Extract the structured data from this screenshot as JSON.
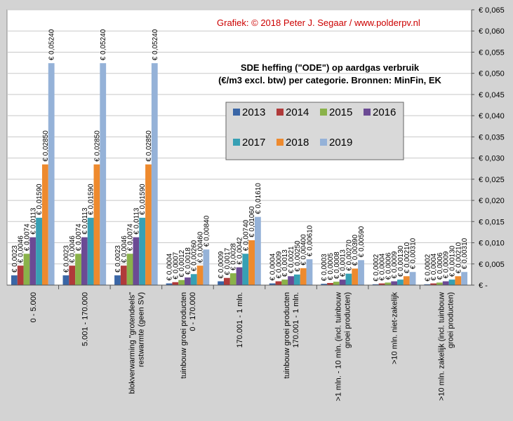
{
  "credit": "Grafiek:  © 2018  Peter J. Segaar / www.polderpv.nl",
  "chart_data": {
    "type": "bar",
    "title": [
      "SDE heffing (\"ODE\")  op aardgas verbruik",
      "(€/m3 excl. btw) per categorie. Bronnen: MinFin, EK"
    ],
    "xlabel": "",
    "ylabel": "",
    "ylim": [
      0,
      0.065
    ],
    "y_ticks": [
      0,
      0.005,
      0.01,
      0.015,
      0.02,
      0.025,
      0.03,
      0.035,
      0.04,
      0.045,
      0.05,
      0.055,
      0.06,
      0.065
    ],
    "y_tick_labels": [
      "€ -",
      "€ 0,005",
      "€ 0,010",
      "€ 0,015",
      "€ 0,020",
      "€ 0,025",
      "€ 0,030",
      "€ 0,035",
      "€ 0,040",
      "€ 0,045",
      "€ 0,050",
      "€ 0,055",
      "€ 0,060",
      "€ 0,065"
    ],
    "y_axis_position": "right",
    "grid": true,
    "legend_position": "center-right",
    "categories": [
      [
        "0 - 5.000"
      ],
      [
        "5.001 - 170.000"
      ],
      [
        "blokverwarming \"grotendeels\"",
        "restwarmte (geen SV)"
      ],
      [
        "tuinbouw groei producten",
        "0 - 170.000"
      ],
      [
        "170.001 - 1 mln."
      ],
      [
        "tuinbouw groei producten",
        "170.001 - 1 mln."
      ],
      [
        ">1 mln. - 10 mln. (incl. tuinbouw",
        "groei producten)"
      ],
      [
        ">10 mln. niet-zakelijk"
      ],
      [
        ">10 mln. zakelijk (incl. tuinbouw",
        "groei producten)"
      ]
    ],
    "series": [
      {
        "name": "2013",
        "color": "#3a66a6",
        "values": [
          0.0023,
          0.0023,
          0.0023,
          0.0004,
          0.0009,
          0.0004,
          0.0003,
          0.0002,
          0.0002
        ],
        "labels": [
          "€ 0,0023",
          "€ 0,0023",
          "€ 0,0023",
          "€ 0,0004",
          "€ 0,0009",
          "€ 0,0004",
          "€ 0,0003",
          "€ 0,0002",
          "€ 0,0002"
        ]
      },
      {
        "name": "2014",
        "color": "#b03a3a",
        "values": [
          0.0046,
          0.0046,
          0.0046,
          0.0007,
          0.0017,
          0.0009,
          0.0005,
          0.0004,
          0.0004
        ],
        "labels": [
          "€ 0,0046",
          "€ 0,0046",
          "€ 0,0046",
          "€ 0,0007",
          "€ 0,0017",
          "€ 0,0009",
          "€ 0,0005",
          "€ 0,0004",
          "€ 0,0004"
        ]
      },
      {
        "name": "2015",
        "color": "#8ab24a",
        "values": [
          0.0074,
          0.0074,
          0.0074,
          0.0012,
          0.0028,
          0.0013,
          0.0008,
          0.0006,
          0.0006
        ],
        "labels": [
          "€ 0,0074",
          "€ 0,0074",
          "€ 0,0074",
          "€ 0,0012",
          "€ 0,0028",
          "€ 0,0013",
          "€ 0,0008",
          "€ 0,0006",
          "€ 0,0006"
        ]
      },
      {
        "name": "2016",
        "color": "#6b4a94",
        "values": [
          0.0113,
          0.0113,
          0.0113,
          0.0018,
          0.0042,
          0.0021,
          0.0013,
          0.0009,
          0.0009
        ],
        "labels": [
          "€ 0,0113",
          "€ 0,0113",
          "€ 0,0113",
          "€ 0,0018",
          "€ 0,0042",
          "€ 0,0021",
          "€ 0,0013",
          "€ 0,0009",
          "€ 0,0009"
        ]
      },
      {
        "name": "2017",
        "color": "#37a0b4",
        "values": [
          0.0159,
          0.0159,
          0.0159,
          0.0026,
          0.0074,
          0.0025,
          0.0027,
          0.0013,
          0.0013
        ],
        "labels": [
          "€ 0,01590",
          "€ 0,01590",
          "€ 0,01590",
          "€ 0,00260",
          "€ 0,00740",
          "€ 0,00250",
          "€ 0,00270",
          "€ 0,00130",
          "€ 0,00130"
        ]
      },
      {
        "name": "2018",
        "color": "#ee8a2e",
        "values": [
          0.0285,
          0.0285,
          0.0285,
          0.0046,
          0.0106,
          0.004,
          0.0039,
          0.0021,
          0.0021
        ],
        "labels": [
          "€ 0,02850",
          "€ 0,02850",
          "€ 0,02850",
          "€ 0,00460",
          "€ 0,01060",
          "€ 0,00400",
          "€ 0,00390",
          "€ 0,00210",
          "€ 0,00210"
        ]
      },
      {
        "name": "2019",
        "color": "#95b2d8",
        "values": [
          0.0524,
          0.0524,
          0.0524,
          0.0084,
          0.0161,
          0.0061,
          0.0059,
          0.0031,
          0.0031
        ],
        "labels": [
          "€ 0,05240",
          "€ 0,05240",
          "€ 0,05240",
          "€ 0,00840",
          "€ 0,01610",
          "€ 0,00610",
          "€ 0,00590",
          "€ 0,00310",
          "€ 0,00310"
        ]
      }
    ]
  }
}
